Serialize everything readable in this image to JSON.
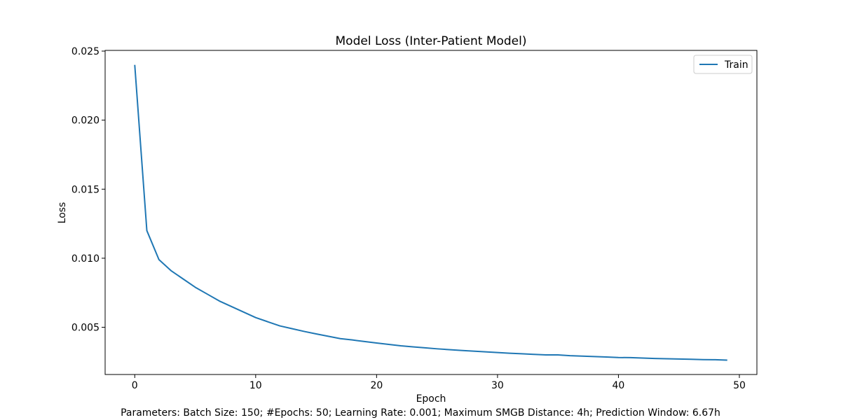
{
  "chart_data": {
    "type": "line",
    "title": "Model Loss (Inter-Patient Model)",
    "xlabel": "Epoch",
    "ylabel": "Loss",
    "xlim": [
      -2.45,
      51.45
    ],
    "ylim": [
      0.00158,
      0.02505
    ],
    "xticks": [
      0,
      10,
      20,
      30,
      40,
      50
    ],
    "xtick_labels": [
      "0",
      "10",
      "20",
      "30",
      "40",
      "50"
    ],
    "yticks": [
      0.005,
      0.01,
      0.015,
      0.02,
      0.025
    ],
    "ytick_labels": [
      "0.005",
      "0.010",
      "0.015",
      "0.020",
      "0.025"
    ],
    "grid": false,
    "legend_position": "top-right",
    "x": [
      0,
      1,
      2,
      3,
      4,
      5,
      6,
      7,
      8,
      9,
      10,
      11,
      12,
      13,
      14,
      15,
      16,
      17,
      18,
      19,
      20,
      21,
      22,
      23,
      24,
      25,
      26,
      27,
      28,
      29,
      30,
      31,
      32,
      33,
      34,
      35,
      36,
      37,
      38,
      39,
      40,
      41,
      42,
      43,
      44,
      45,
      46,
      47,
      48,
      49
    ],
    "series": [
      {
        "name": "Train",
        "color": "#1f77b4",
        "values": [
          0.024,
          0.012,
          0.0099,
          0.0091,
          0.0085,
          0.0079,
          0.0074,
          0.0069,
          0.0065,
          0.0061,
          0.0057,
          0.0054,
          0.0051,
          0.0049,
          0.0047,
          0.00452,
          0.00435,
          0.00418,
          0.00408,
          0.00397,
          0.00386,
          0.00376,
          0.00366,
          0.00358,
          0.00351,
          0.00344,
          0.00338,
          0.00332,
          0.00327,
          0.00322,
          0.00317,
          0.00312,
          0.00308,
          0.00304,
          0.003,
          0.003,
          0.00294,
          0.00291,
          0.00288,
          0.00285,
          0.00281,
          0.0028,
          0.00277,
          0.00274,
          0.00272,
          0.0027,
          0.00268,
          0.00266,
          0.00265,
          0.00262
        ]
      }
    ]
  },
  "caption": "Parameters: Batch Size: 150; #Epochs: 50; Learning Rate: 0.001; Maximum SMGB Distance: 4h; Prediction Window: 6.67h"
}
